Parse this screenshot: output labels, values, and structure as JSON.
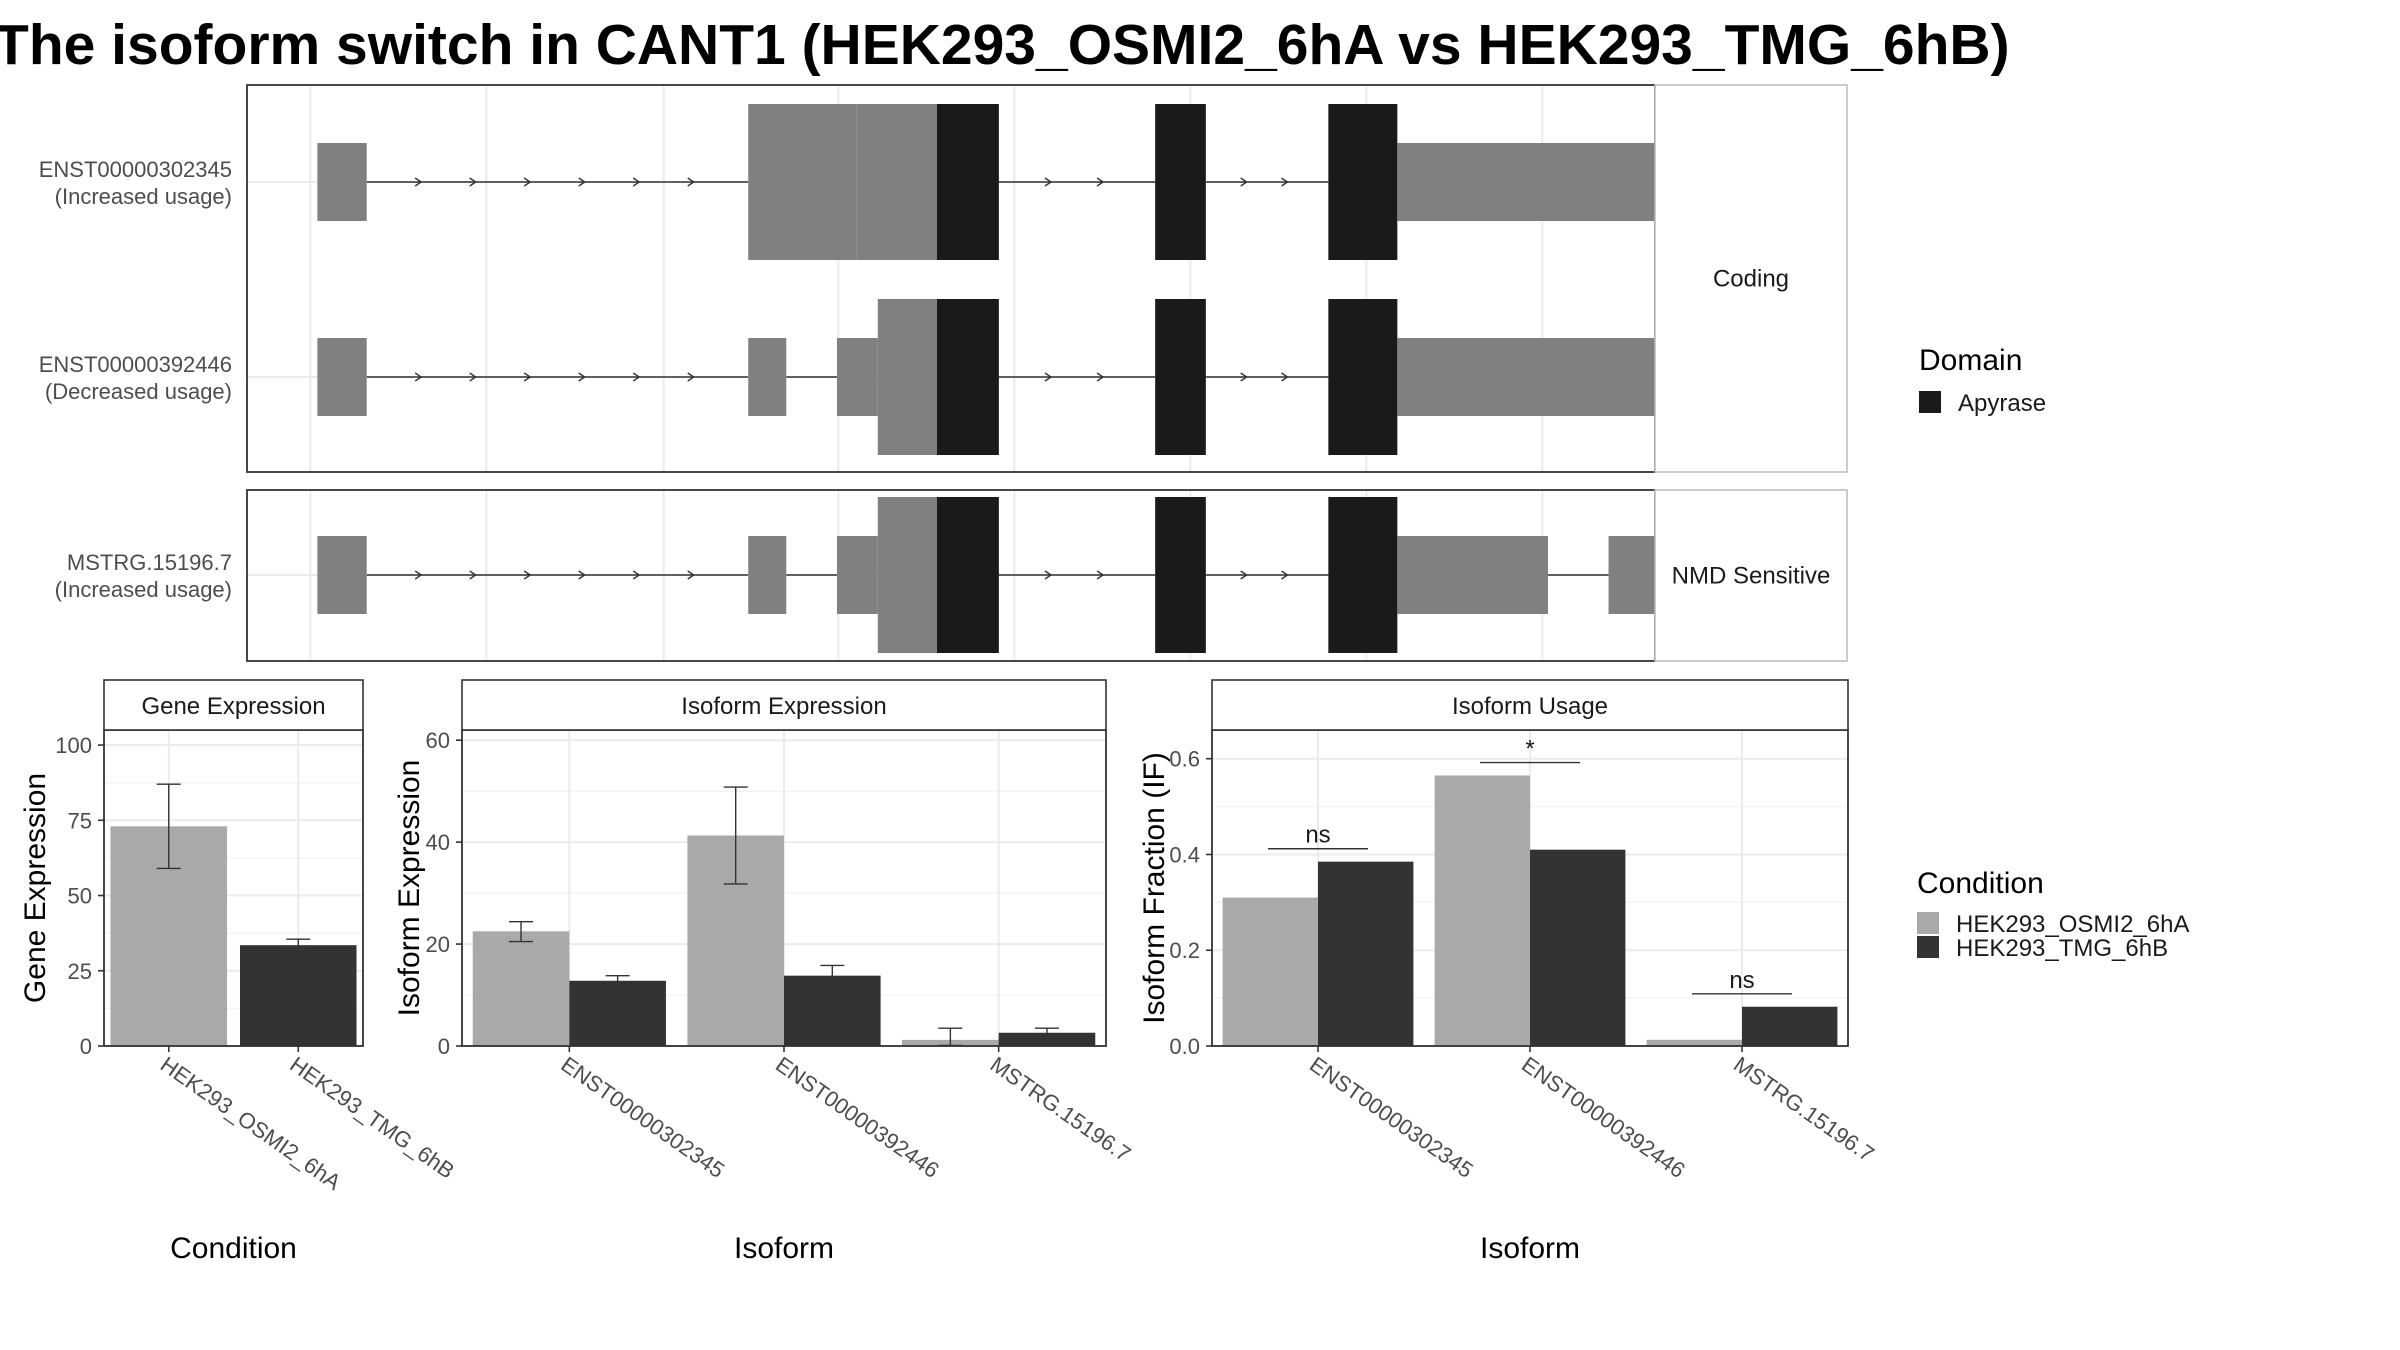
{
  "title": "The isoform switch in CANT1 (HEK293_OSMI2_6hA vs HEK293_TMG_6hB)",
  "colors": {
    "domain": "#1a1a1a",
    "utr": "#808080",
    "cond_a": "#a9a9a9",
    "cond_b": "#333333",
    "grid": "#ebebeb",
    "strip_bg": "#ffffff"
  },
  "structure": {
    "panels": [
      {
        "strip": "Coding",
        "tracks": [
          {
            "name": "ENST00000302345",
            "label_line1": "ENST00000302345",
            "label_line2": "(Increased usage)",
            "segments": [
              {
                "start": 0.05,
                "end": 0.085,
                "kind": "utr"
              },
              {
                "start": 0.356,
                "end": 0.433,
                "kind": "cds"
              },
              {
                "start": 0.433,
                "end": 0.49,
                "kind": "cds"
              },
              {
                "start": 0.49,
                "end": 0.534,
                "kind": "domain"
              },
              {
                "start": 0.645,
                "end": 0.681,
                "kind": "domain"
              },
              {
                "start": 0.768,
                "end": 0.817,
                "kind": "domain"
              },
              {
                "start": 0.817,
                "end": 1.02,
                "kind": "utr"
              }
            ],
            "utr_narrow": [
              [
                0.05,
                0.085
              ],
              [
                0.356,
                0.433
              ],
              [
                0.817,
                1.02
              ]
            ]
          },
          {
            "name": "ENST00000392446",
            "label_line1": "ENST00000392446",
            "label_line2": "(Decreased usage)",
            "segments": [
              {
                "start": 0.05,
                "end": 0.085,
                "kind": "utr"
              },
              {
                "start": 0.356,
                "end": 0.383,
                "kind": "utr"
              },
              {
                "start": 0.419,
                "end": 0.448,
                "kind": "utr"
              },
              {
                "start": 0.448,
                "end": 0.49,
                "kind": "cds"
              },
              {
                "start": 0.49,
                "end": 0.534,
                "kind": "domain"
              },
              {
                "start": 0.645,
                "end": 0.681,
                "kind": "domain"
              },
              {
                "start": 0.768,
                "end": 0.817,
                "kind": "domain"
              },
              {
                "start": 0.817,
                "end": 1.022,
                "kind": "utr"
              }
            ]
          }
        ]
      },
      {
        "strip": "NMD Sensitive",
        "tracks": [
          {
            "name": "MSTRG.15196.7",
            "label_line1": "MSTRG.15196.7",
            "label_line2": "(Increased usage)",
            "segments": [
              {
                "start": 0.05,
                "end": 0.085,
                "kind": "utr"
              },
              {
                "start": 0.356,
                "end": 0.383,
                "kind": "utr"
              },
              {
                "start": 0.419,
                "end": 0.448,
                "kind": "utr"
              },
              {
                "start": 0.448,
                "end": 0.49,
                "kind": "cds"
              },
              {
                "start": 0.49,
                "end": 0.534,
                "kind": "domain"
              },
              {
                "start": 0.645,
                "end": 0.681,
                "kind": "domain"
              },
              {
                "start": 0.768,
                "end": 0.817,
                "kind": "domain"
              },
              {
                "start": 0.817,
                "end": 0.924,
                "kind": "utr"
              },
              {
                "start": 0.967,
                "end": 1.013,
                "kind": "utr"
              }
            ]
          }
        ]
      }
    ]
  },
  "legend_domain": {
    "title": "Domain",
    "items": [
      {
        "label": "Apyrase",
        "color": "#1a1a1a"
      }
    ]
  },
  "legend_condition": {
    "title": "Condition",
    "items": [
      {
        "label": "HEK293_OSMI2_6hA",
        "color": "#a9a9a9"
      },
      {
        "label": "HEK293_TMG_6hB",
        "color": "#333333"
      }
    ]
  },
  "chart_data": [
    {
      "type": "bar",
      "title": "Gene Expression",
      "xlabel": "Condition",
      "ylabel": "Gene Expression",
      "ylim": [
        0,
        105
      ],
      "yticks": [
        0,
        25,
        50,
        75,
        100
      ],
      "categories": [
        "HEK293_OSMI2_6hA",
        "HEK293_TMG_6hB"
      ],
      "series": [
        {
          "values": [
            73,
            33.5
          ],
          "err_low": [
            59,
            31.5
          ],
          "err_high": [
            87,
            35.5
          ],
          "colors": [
            "#a9a9a9",
            "#333333"
          ]
        }
      ]
    },
    {
      "type": "bar",
      "title": "Isoform Expression",
      "xlabel": "Isoform",
      "ylabel": "Isoform Expression",
      "ylim": [
        0,
        62
      ],
      "yticks": [
        0,
        20,
        40,
        60
      ],
      "categories": [
        "ENST00000302345",
        "ENST00000392446",
        "MSTRG.15196.7"
      ],
      "series": [
        {
          "name": "HEK293_OSMI2_6hA",
          "values": [
            22.5,
            41.3,
            1.2
          ],
          "err_low": [
            20.5,
            31.8,
            0.1
          ],
          "err_high": [
            24.4,
            50.8,
            3.5
          ]
        },
        {
          "name": "HEK293_TMG_6hB",
          "values": [
            12.8,
            13.8,
            2.6
          ],
          "err_low": [
            11.8,
            11.9,
            1.9
          ],
          "err_high": [
            13.8,
            15.8,
            3.5
          ]
        }
      ]
    },
    {
      "type": "bar",
      "title": "Isoform Usage",
      "xlabel": "Isoform",
      "ylabel": "Isoform Fraction (IF)",
      "ylim": [
        0,
        0.66
      ],
      "yticks": [
        0.0,
        0.2,
        0.4,
        0.6
      ],
      "categories": [
        "ENST00000302345",
        "ENST00000392446",
        "MSTRG.15196.7"
      ],
      "series": [
        {
          "name": "HEK293_OSMI2_6hA",
          "values": [
            0.31,
            0.565,
            0.013
          ]
        },
        {
          "name": "HEK293_TMG_6hB",
          "values": [
            0.385,
            0.41,
            0.082
          ]
        }
      ],
      "annotations": [
        {
          "label": "ns",
          "value": 0.412,
          "category": 0
        },
        {
          "label": "*",
          "value": 0.592,
          "category": 1
        },
        {
          "label": "ns",
          "value": 0.109,
          "category": 2
        }
      ]
    }
  ]
}
